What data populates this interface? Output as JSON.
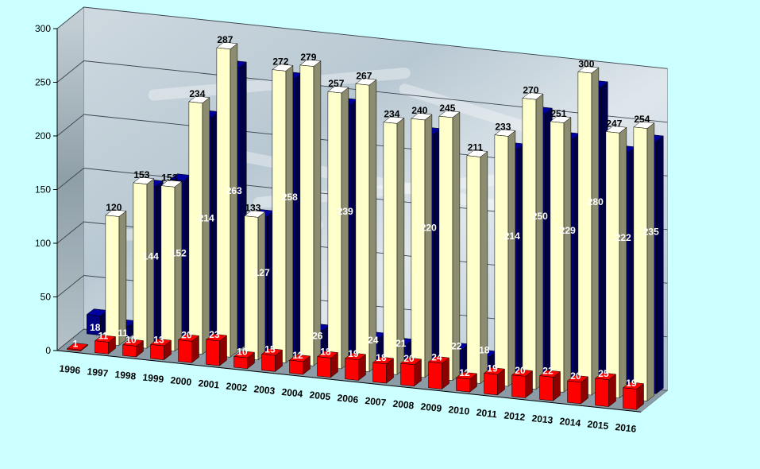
{
  "chart_data": {
    "type": "bar",
    "style": "3d-clustered-depth",
    "categories": [
      "1996",
      "1997",
      "1998",
      "1999",
      "2000",
      "2001",
      "2002",
      "2003",
      "2004",
      "2005",
      "2006",
      "2007",
      "2008",
      "2009",
      "2010",
      "2011",
      "2012",
      "2013",
      "2014",
      "2015",
      "2016"
    ],
    "series": [
      {
        "values": [
          18,
          11,
          144,
          152,
          214,
          263,
          127,
          258,
          26,
          239,
          24,
          21,
          220,
          22,
          18,
          214,
          250,
          229,
          280,
          222,
          235
        ],
        "color": "#000080"
      },
      {
        "values": [
          null,
          120,
          153,
          153,
          234,
          287,
          133,
          272,
          279,
          257,
          267,
          234,
          240,
          245,
          211,
          233,
          270,
          251,
          300,
          247,
          254
        ],
        "color": "#ffffcc"
      },
      {
        "values": [
          1,
          11,
          10,
          13,
          20,
          23,
          10,
          15,
          12,
          18,
          19,
          18,
          20,
          24,
          12,
          19,
          20,
          22,
          20,
          25,
          19
        ],
        "color": "#ff0000"
      }
    ],
    "yticks": [
      "0",
      "50",
      "100",
      "150",
      "200",
      "250",
      "300"
    ],
    "ylim": [
      0,
      300
    ],
    "grid": true,
    "legend": "none",
    "title": "",
    "xlabel": "",
    "ylabel": ""
  }
}
